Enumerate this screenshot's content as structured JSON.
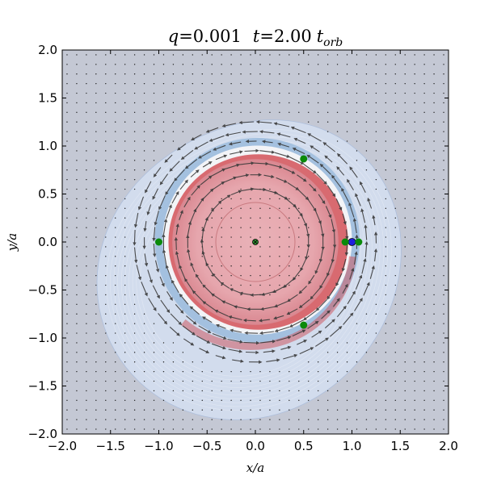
{
  "chart_data": {
    "type": "scatter",
    "title": "q=0.001    t=2.00 t_orb",
    "title_parts": {
      "q_label": "q",
      "q_value": "=0.001",
      "t_label": "t",
      "t_value": "=2.00",
      "t_unit": "t",
      "t_sub": "orb"
    },
    "xlabel": "x/a",
    "ylabel": "y/a",
    "xlim": [
      -2.0,
      2.0
    ],
    "ylim": [
      -2.0,
      2.0
    ],
    "xticks": [
      -2.0,
      -1.5,
      -1.0,
      -0.5,
      0.0,
      0.5,
      1.0,
      1.5,
      2.0
    ],
    "yticks": [
      -2.0,
      -1.5,
      -1.0,
      -0.5,
      0.0,
      0.5,
      1.0,
      1.5,
      2.0
    ],
    "xtick_labels": [
      "−2.0",
      "−1.5",
      "−1.0",
      "−0.5",
      "0.0",
      "0.5",
      "1.0",
      "1.5",
      "2.0"
    ],
    "ytick_labels": [
      "−2.0",
      "−1.5",
      "−1.0",
      "−0.5",
      "0.0",
      "0.5",
      "1.0",
      "1.5",
      "2.0"
    ],
    "grid": false,
    "background_color": "#c4c8d4",
    "contour_colors": {
      "inner": "#e8a8b0",
      "ring_red": "#d86a70",
      "ring_blue": "#8fb4d8",
      "outer": "#d2dced"
    },
    "points": [
      {
        "name": "central-star",
        "x": 0.0,
        "y": 0.0,
        "color": "#2e8b2e"
      },
      {
        "name": "planet",
        "x": 1.0,
        "y": 0.0,
        "color": "#1f1fdd"
      },
      {
        "name": "L1",
        "x": 0.93,
        "y": 0.0,
        "color": "#0a8a0a"
      },
      {
        "name": "L2",
        "x": 1.07,
        "y": 0.0,
        "color": "#0a8a0a"
      },
      {
        "name": "L3",
        "x": -1.0,
        "y": 0.0,
        "color": "#0a8a0a"
      },
      {
        "name": "L4",
        "x": 0.5,
        "y": 0.866,
        "color": "#0a8a0a"
      },
      {
        "name": "L5",
        "x": 0.5,
        "y": -0.866,
        "color": "#0a8a0a"
      }
    ]
  }
}
